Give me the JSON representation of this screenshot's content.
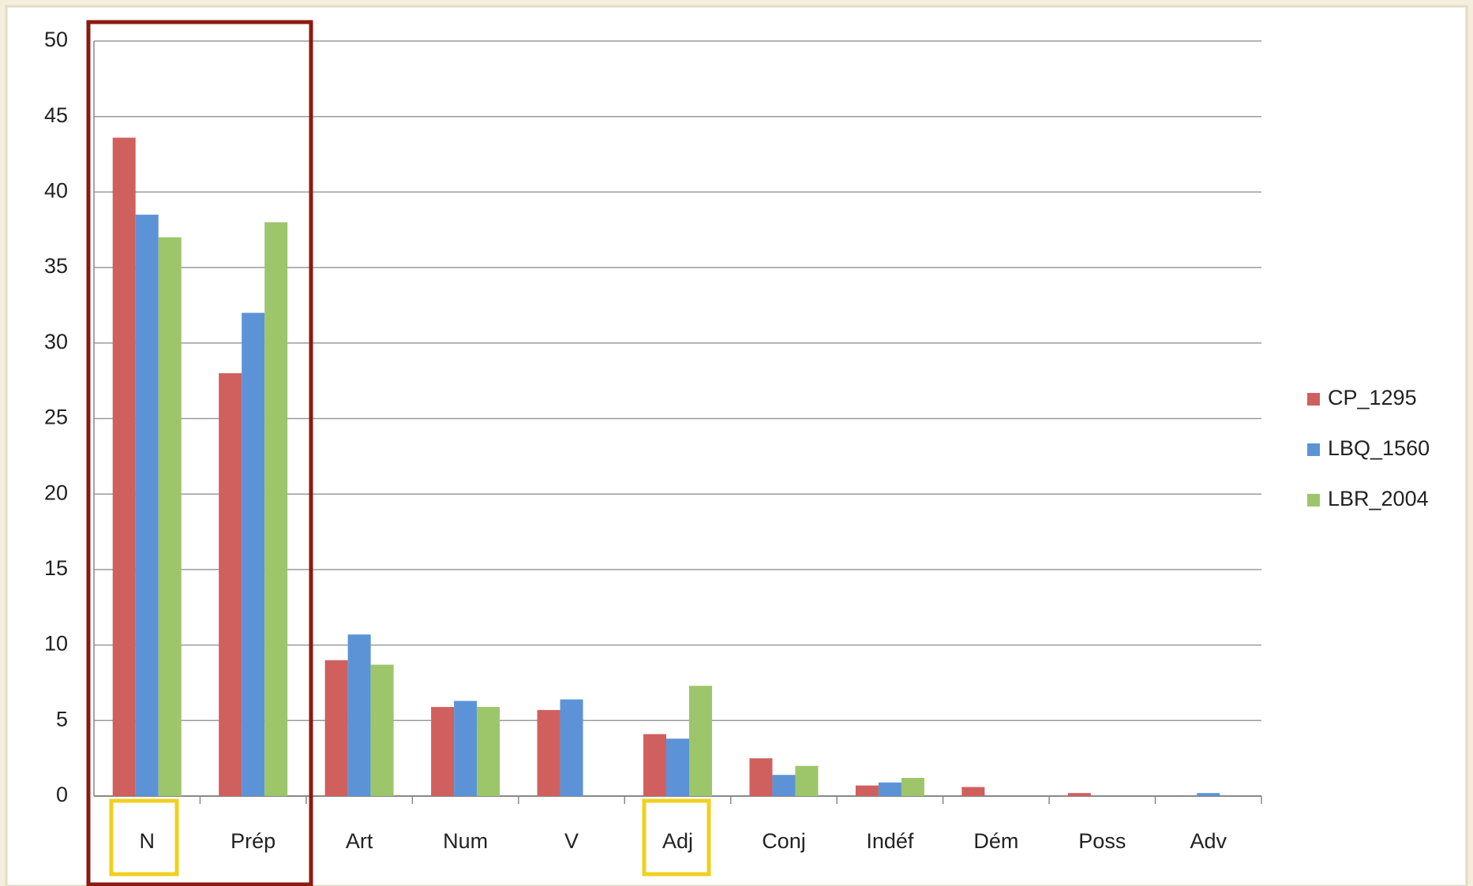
{
  "chart_data": {
    "type": "bar",
    "categories": [
      "N",
      "Prép",
      "Art",
      "Num",
      "V",
      "Adj",
      "Conj",
      "Indéf",
      "Dém",
      "Poss",
      "Adv"
    ],
    "series": [
      {
        "name": "CP_1295",
        "color": "#d0605e",
        "values": [
          43.6,
          28,
          9,
          5.9,
          5.7,
          4.1,
          2.5,
          0.7,
          0.6,
          0.2,
          0
        ]
      },
      {
        "name": "LBQ_1560",
        "color": "#5b93d6",
        "values": [
          38.5,
          32,
          10.7,
          6.3,
          6.4,
          3.8,
          1.4,
          0.9,
          0,
          0,
          0.2
        ]
      },
      {
        "name": "LBR_2004",
        "color": "#9dc66a",
        "values": [
          37,
          38,
          8.7,
          5.9,
          0,
          7.3,
          2,
          1.2,
          0,
          0,
          0
        ]
      }
    ],
    "ylim": [
      0,
      50
    ],
    "yticks": [
      0,
      5,
      10,
      15,
      20,
      25,
      30,
      35,
      40,
      45,
      50
    ],
    "grid": true,
    "legend": "right"
  }
}
